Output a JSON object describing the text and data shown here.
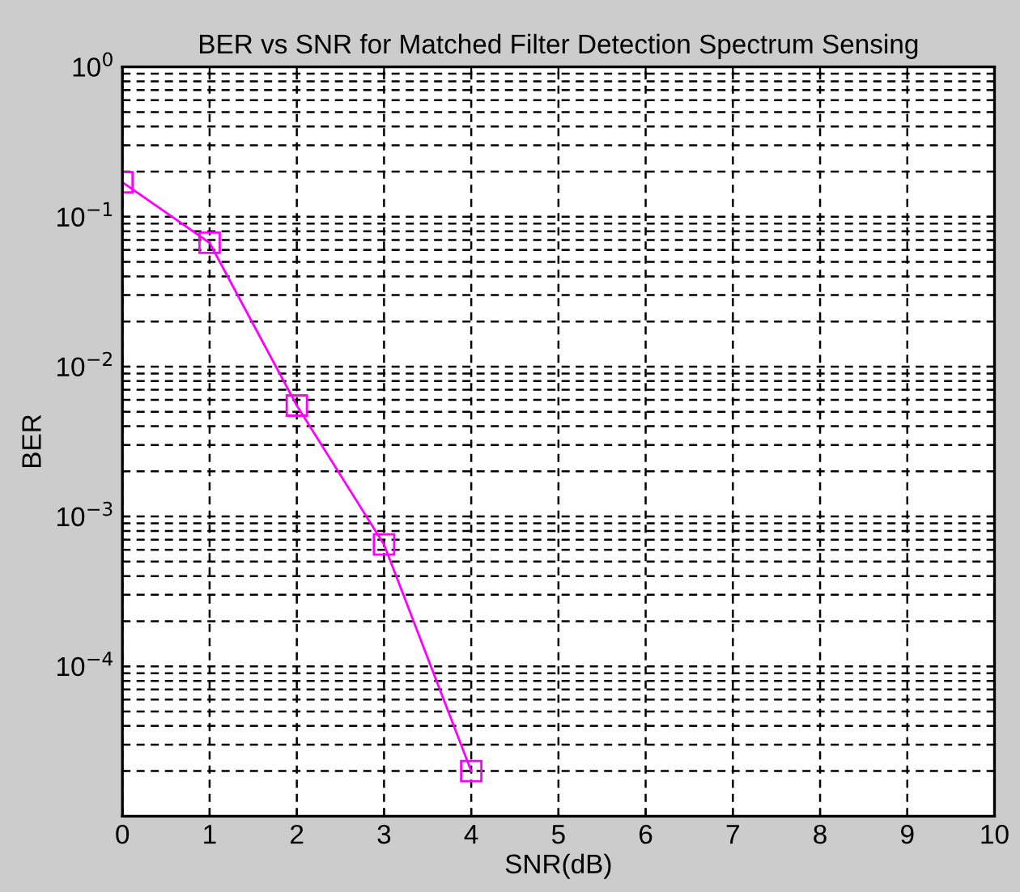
{
  "chart_data": {
    "type": "line",
    "title": "BER vs SNR for Matched Filter Detection Spectrum Sensing",
    "xlabel": "SNR(dB)",
    "ylabel": "BER",
    "x": [
      0,
      1,
      2,
      3,
      4
    ],
    "series": [
      {
        "color": "#ff00ff",
        "values": [
          0.17,
          0.067,
          0.0055,
          0.00065,
          2e-05
        ]
      }
    ],
    "marker": "square",
    "line_style": "solid",
    "log": "y",
    "grid": true,
    "xlim": [
      0,
      10
    ],
    "xticks": [
      0,
      1,
      2,
      3,
      4,
      5,
      6,
      7,
      8,
      9,
      10
    ],
    "ylim": [
      1e-05,
      1
    ],
    "yticks": [
      {
        "value": 1e-05,
        "label": null
      },
      {
        "value": 0.0001,
        "label": "10$^{−4}$"
      },
      {
        "value": 0.001,
        "label": "10$^{−3}$"
      },
      {
        "value": 0.01,
        "label": "10$^{−2}$"
      },
      {
        "value": 0.1,
        "label": "10$^{−1}$"
      },
      {
        "value": 1,
        "label": "10$^{0}$"
      }
    ]
  }
}
